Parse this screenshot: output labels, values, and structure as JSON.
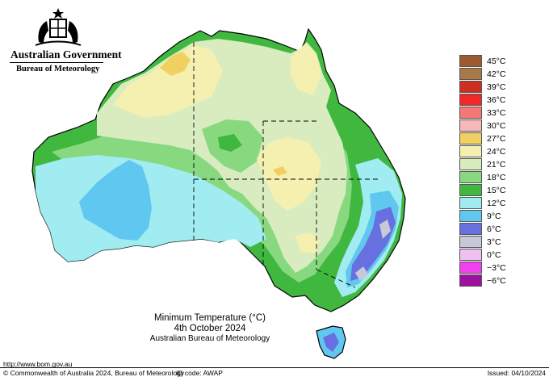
{
  "header": {
    "gov_name": "Australian Government",
    "bureau_name": "Bureau of Meteorology"
  },
  "legend": {
    "items": [
      {
        "label": "45°C",
        "color": "#9c5a2e"
      },
      {
        "label": "42°C",
        "color": "#a87848"
      },
      {
        "label": "39°C",
        "color": "#cc3020"
      },
      {
        "label": "36°C",
        "color": "#f02828"
      },
      {
        "label": "33°C",
        "color": "#f47878"
      },
      {
        "label": "30°C",
        "color": "#f8b8b8"
      },
      {
        "label": "27°C",
        "color": "#f0d060"
      },
      {
        "label": "24°C",
        "color": "#f6f0b0"
      },
      {
        "label": "21°C",
        "color": "#d8ecc0"
      },
      {
        "label": "18°C",
        "color": "#88d880"
      },
      {
        "label": "15°C",
        "color": "#40b840"
      },
      {
        "label": "12°C",
        "color": "#a0ecf0"
      },
      {
        "label": "9°C",
        "color": "#60c8f0"
      },
      {
        "label": "6°C",
        "color": "#6870e0"
      },
      {
        "label": "3°C",
        "color": "#c8c8d8"
      },
      {
        "label": "0°C",
        "color": "#f0c0f0"
      },
      {
        "label": "−3°C",
        "color": "#f040f0"
      },
      {
        "label": "−6°C",
        "color": "#a010a0"
      }
    ]
  },
  "title": {
    "main": "Minimum Temperature (°C)",
    "date": "4th October 2024",
    "source": "Australian Bureau of Meteorology"
  },
  "footer": {
    "url": "http://www.bom.gov.au",
    "copyright": "© Commonwealth of Australia 2024, Bureau of Meteorology",
    "id_code": "ID code: AWAP",
    "issued": "Issued: 04/10/2024"
  }
}
